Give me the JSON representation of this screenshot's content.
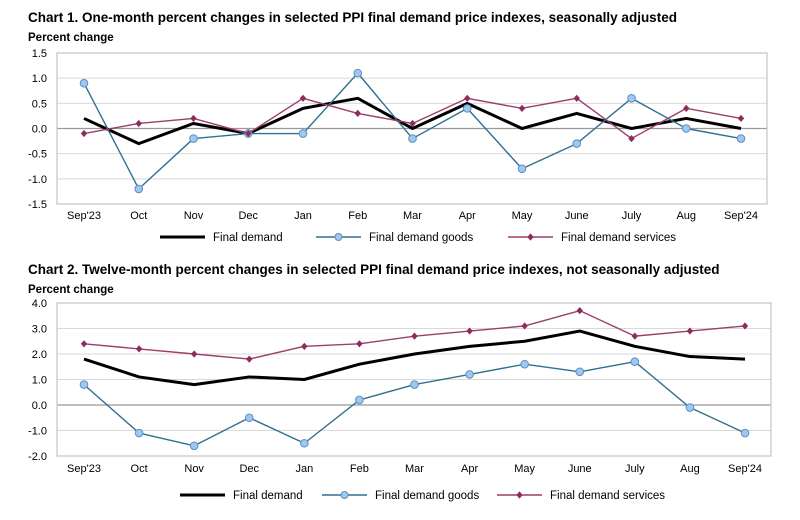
{
  "chart_data": [
    {
      "type": "line",
      "title": "Chart 1. One-month percent changes in selected PPI final demand price indexes, seasonally adjusted",
      "ylabel": "Percent change",
      "xlabel": "",
      "categories": [
        "Sep'23",
        "Oct",
        "Nov",
        "Dec",
        "Jan",
        "Feb",
        "Mar",
        "Apr",
        "May",
        "June",
        "July",
        "Aug",
        "Sep'24"
      ],
      "ylim": [
        -1.5,
        1.5
      ],
      "yticks": [
        -1.5,
        -1.0,
        -0.5,
        0.0,
        0.5,
        1.0,
        1.5
      ],
      "ytick_labels": [
        "-1.5",
        "-1.0",
        "-0.5",
        "0.0",
        "0.5",
        "1.0",
        "1.5"
      ],
      "grid": true,
      "legend_position": "bottom",
      "series": [
        {
          "name": "Final demand",
          "color": "#000000",
          "marker": "none",
          "values": [
            0.2,
            -0.3,
            0.1,
            -0.1,
            0.4,
            0.6,
            0.0,
            0.5,
            0.0,
            0.3,
            0.0,
            0.2,
            0.0
          ]
        },
        {
          "name": "Final demand goods",
          "color": "#31708f",
          "marker": "circle",
          "marker_fill": "#9ec8f0",
          "values": [
            0.9,
            -1.2,
            -0.2,
            -0.1,
            -0.1,
            1.1,
            -0.2,
            0.4,
            -0.8,
            -0.3,
            0.6,
            0.0,
            -0.2
          ]
        },
        {
          "name": "Final demand services",
          "color": "#9b3e6c",
          "marker": "diamond",
          "marker_fill": "#8b2c5c",
          "values": [
            -0.1,
            0.1,
            0.2,
            -0.1,
            0.6,
            0.3,
            0.1,
            0.6,
            0.4,
            0.6,
            -0.2,
            0.4,
            0.2
          ]
        }
      ]
    },
    {
      "type": "line",
      "title": "Chart 2. Twelve-month percent changes in selected PPI final demand price indexes, not seasonally adjusted",
      "ylabel": "Percent change",
      "xlabel": "",
      "categories": [
        "Sep'23",
        "Oct",
        "Nov",
        "Dec",
        "Jan",
        "Feb",
        "Mar",
        "Apr",
        "May",
        "June",
        "July",
        "Aug",
        "Sep'24"
      ],
      "ylim": [
        -2.0,
        4.0
      ],
      "yticks": [
        -2.0,
        -1.0,
        0.0,
        1.0,
        2.0,
        3.0,
        4.0
      ],
      "ytick_labels": [
        "-2.0",
        "-1.0",
        "0.0",
        "1.0",
        "2.0",
        "3.0",
        "4.0"
      ],
      "grid": true,
      "legend_position": "bottom",
      "series": [
        {
          "name": "Final demand",
          "color": "#000000",
          "marker": "none",
          "values": [
            1.8,
            1.1,
            0.8,
            1.1,
            1.0,
            1.6,
            2.0,
            2.3,
            2.5,
            2.9,
            2.3,
            1.9,
            1.8
          ]
        },
        {
          "name": "Final demand goods",
          "color": "#31708f",
          "marker": "circle",
          "marker_fill": "#9ec8f0",
          "values": [
            0.8,
            -1.1,
            -1.6,
            -0.5,
            -1.5,
            0.2,
            0.8,
            1.2,
            1.6,
            1.3,
            1.7,
            -0.1,
            -1.1
          ]
        },
        {
          "name": "Final demand services",
          "color": "#9b3e6c",
          "marker": "diamond",
          "marker_fill": "#8b2c5c",
          "values": [
            2.4,
            2.2,
            2.0,
            1.8,
            2.3,
            2.4,
            2.7,
            2.9,
            3.1,
            3.7,
            2.7,
            2.9,
            3.1
          ]
        }
      ]
    }
  ]
}
